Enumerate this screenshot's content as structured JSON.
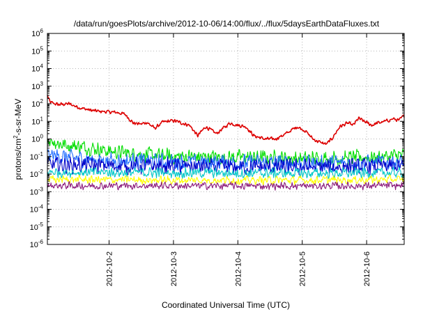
{
  "chart_data": {
    "type": "line",
    "title": "/data/run/goesPlots/archive/2012-10-06/14:00/flux/../flux/5daysEarthDataFluxes.txt",
    "xlabel": "Coordinated Universal Time (UTC)",
    "ylabel": "protons/cm²-s-sr-MeV",
    "ylabel_parts": {
      "base": "protons/cm",
      "sup": "2",
      "rest": "-s-sr-MeV"
    },
    "yscale": "log",
    "ylim": [
      1e-06,
      1000000.0
    ],
    "xlim": [
      "2012-10-01T01:00",
      "2012-10-06T14:00"
    ],
    "grid": true,
    "y_ticks": [
      {
        "value": 1e-06,
        "base": "10",
        "exp": "-6"
      },
      {
        "value": 1e-05,
        "base": "10",
        "exp": "-5"
      },
      {
        "value": 0.0001,
        "base": "10",
        "exp": "-4"
      },
      {
        "value": 0.001,
        "base": "10",
        "exp": "-3"
      },
      {
        "value": 0.01,
        "base": "10",
        "exp": "-2"
      },
      {
        "value": 0.1,
        "base": "10",
        "exp": "-1"
      },
      {
        "value": 1,
        "base": "10",
        "exp": "0"
      },
      {
        "value": 10,
        "base": "10",
        "exp": "1"
      },
      {
        "value": 100,
        "base": "10",
        "exp": "2"
      },
      {
        "value": 1000,
        "base": "10",
        "exp": "3"
      },
      {
        "value": 10000,
        "base": "10",
        "exp": "4"
      },
      {
        "value": 100000,
        "base": "10",
        "exp": "5"
      },
      {
        "value": 1000000,
        "base": "10",
        "exp": "6"
      }
    ],
    "x_ticks": [
      {
        "value": "2012-10-02T00:00",
        "label": "2012-10-2"
      },
      {
        "value": "2012-10-03T00:00",
        "label": "2012-10-3"
      },
      {
        "value": "2012-10-04T00:00",
        "label": "2012-10-4"
      },
      {
        "value": "2012-10-05T00:00",
        "label": "2012-10-5"
      },
      {
        "value": "2012-10-06T00:00",
        "label": "2012-10-6"
      }
    ],
    "series": [
      {
        "color": "#dd0000",
        "noise": 0.12,
        "points": [
          [
            "2012-10-01T01:00",
            300
          ],
          [
            "2012-10-01T02:00",
            120
          ],
          [
            "2012-10-01T05:00",
            90
          ],
          [
            "2012-10-01T09:00",
            100
          ],
          [
            "2012-10-01T13:00",
            60
          ],
          [
            "2012-10-01T18:00",
            40
          ],
          [
            "2012-10-01T23:00",
            35
          ],
          [
            "2012-10-02T03:00",
            32
          ],
          [
            "2012-10-02T06:00",
            25
          ],
          [
            "2012-10-02T09:00",
            8
          ],
          [
            "2012-10-02T12:00",
            7
          ],
          [
            "2012-10-02T14:00",
            9
          ],
          [
            "2012-10-02T17:00",
            4
          ],
          [
            "2012-10-02T20:00",
            9
          ],
          [
            "2012-10-03T00:00",
            11
          ],
          [
            "2012-10-03T02:00",
            9
          ],
          [
            "2012-10-03T06:00",
            6
          ],
          [
            "2012-10-03T09:00",
            1.5
          ],
          [
            "2012-10-03T12:00",
            5
          ],
          [
            "2012-10-03T16:00",
            2
          ],
          [
            "2012-10-03T21:00",
            8
          ],
          [
            "2012-10-04T00:00",
            6
          ],
          [
            "2012-10-04T03:00",
            5
          ],
          [
            "2012-10-04T06:00",
            1.5
          ],
          [
            "2012-10-04T10:00",
            1
          ],
          [
            "2012-10-04T14:00",
            1
          ],
          [
            "2012-10-04T18:00",
            2
          ],
          [
            "2012-10-04T22:00",
            5
          ],
          [
            "2012-10-05T01:00",
            3
          ],
          [
            "2012-10-05T04:00",
            1
          ],
          [
            "2012-10-05T06:00",
            0.7
          ],
          [
            "2012-10-05T09:00",
            0.5
          ],
          [
            "2012-10-05T11:00",
            1
          ],
          [
            "2012-10-05T14:00",
            5
          ],
          [
            "2012-10-05T17:00",
            8
          ],
          [
            "2012-10-05T19:00",
            6
          ],
          [
            "2012-10-05T21:00",
            15
          ],
          [
            "2012-10-05T23:00",
            10
          ],
          [
            "2012-10-06T02:00",
            6
          ],
          [
            "2012-10-06T04:00",
            8
          ],
          [
            "2012-10-06T07:00",
            10
          ],
          [
            "2012-10-06T10:00",
            14
          ],
          [
            "2012-10-06T12:00",
            11
          ],
          [
            "2012-10-06T14:00",
            22
          ]
        ]
      },
      {
        "color": "#00dd00",
        "noise": 0.5,
        "points": [
          [
            "2012-10-01T01:00",
            1.0
          ],
          [
            "2012-10-01T06:00",
            0.5
          ],
          [
            "2012-10-01T12:00",
            0.4
          ],
          [
            "2012-10-01T18:00",
            0.3
          ],
          [
            "2012-10-02T00:00",
            0.2
          ],
          [
            "2012-10-02T08:00",
            0.15
          ],
          [
            "2012-10-02T16:00",
            0.12
          ],
          [
            "2012-10-03T00:00",
            0.1
          ],
          [
            "2012-10-04T00:00",
            0.09
          ],
          [
            "2012-10-05T00:00",
            0.08
          ],
          [
            "2012-10-05T12:00",
            0.08
          ],
          [
            "2012-10-06T00:00",
            0.09
          ],
          [
            "2012-10-06T14:00",
            0.12
          ]
        ]
      },
      {
        "color": "#1e6cff",
        "noise": 0.55,
        "points": [
          [
            "2012-10-01T01:00",
            0.12
          ],
          [
            "2012-10-01T12:00",
            0.08
          ],
          [
            "2012-10-02T00:00",
            0.06
          ],
          [
            "2012-10-03T00:00",
            0.05
          ],
          [
            "2012-10-04T00:00",
            0.045
          ],
          [
            "2012-10-05T00:00",
            0.04
          ],
          [
            "2012-10-06T00:00",
            0.045
          ],
          [
            "2012-10-06T14:00",
            0.05
          ]
        ]
      },
      {
        "color": "#0000c8",
        "noise": 0.55,
        "points": [
          [
            "2012-10-01T01:00",
            0.035
          ],
          [
            "2012-10-02T00:00",
            0.03
          ],
          [
            "2012-10-03T00:00",
            0.028
          ],
          [
            "2012-10-04T00:00",
            0.025
          ],
          [
            "2012-10-05T00:00",
            0.025
          ],
          [
            "2012-10-06T00:00",
            0.027
          ],
          [
            "2012-10-06T14:00",
            0.028
          ]
        ]
      },
      {
        "color": "#00c8c8",
        "noise": 0.35,
        "points": [
          [
            "2012-10-01T01:00",
            0.013
          ],
          [
            "2012-10-03T00:00",
            0.012
          ],
          [
            "2012-10-05T00:00",
            0.011
          ],
          [
            "2012-10-06T14:00",
            0.012
          ]
        ]
      },
      {
        "color": "#ffff00",
        "noise": 0.28,
        "points": [
          [
            "2012-10-01T01:00",
            0.005
          ],
          [
            "2012-10-03T00:00",
            0.0045
          ],
          [
            "2012-10-05T00:00",
            0.0045
          ],
          [
            "2012-10-06T14:00",
            0.005
          ]
        ]
      },
      {
        "color": "#8b1a7a",
        "noise": 0.25,
        "points": [
          [
            "2012-10-01T01:00",
            0.0022
          ],
          [
            "2012-10-03T00:00",
            0.0022
          ],
          [
            "2012-10-05T00:00",
            0.0021
          ],
          [
            "2012-10-06T14:00",
            0.0022
          ]
        ]
      }
    ]
  }
}
